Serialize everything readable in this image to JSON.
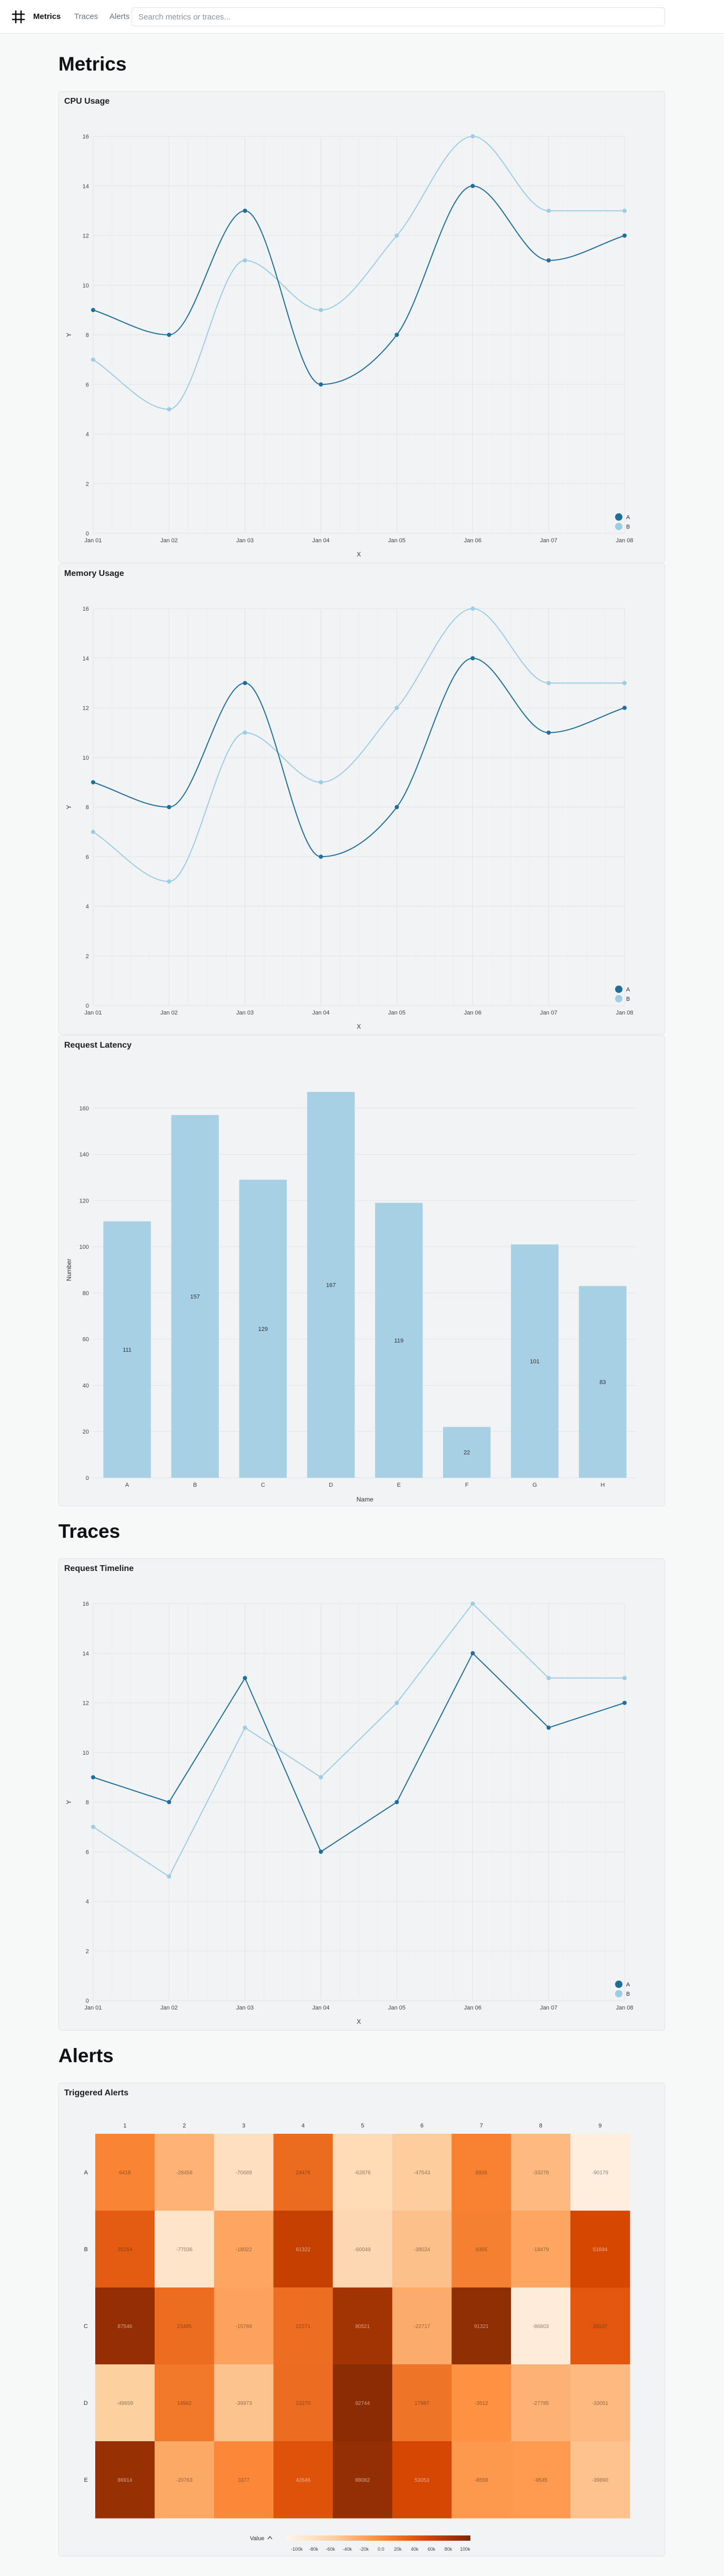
{
  "nav": {
    "brand": "Metrics",
    "links": [
      "Traces",
      "Alerts"
    ],
    "search_placeholder": "Search metrics or traces..."
  },
  "sections": {
    "metrics": "Metrics",
    "traces": "Traces",
    "alerts": "Alerts"
  },
  "colors": {
    "series_a": "#1f6f9c",
    "series_b": "#9ccde4",
    "bar": "#a7d0e4",
    "grid": "#e1e4e7"
  },
  "panels": {
    "cpu": "CPU Usage",
    "memory": "Memory Usage",
    "latency": "Request Latency",
    "timeline": "Request Timeline",
    "alerts": "Triggered Alerts"
  },
  "chart_data": [
    {
      "id": "cpu",
      "type": "line",
      "curve": "smooth",
      "x": [
        "Jan 01",
        "Jan 02",
        "Jan 03",
        "Jan 04",
        "Jan 05",
        "Jan 06",
        "Jan 07",
        "Jan 08"
      ],
      "series": [
        {
          "name": "A",
          "values": [
            9,
            8,
            13,
            6,
            8,
            14,
            11,
            12
          ]
        },
        {
          "name": "B",
          "values": [
            7,
            5,
            11,
            9,
            12,
            16,
            13,
            13
          ]
        }
      ],
      "xlabel": "X",
      "ylabel": "Y",
      "ylim": [
        0,
        16
      ],
      "yticks": [
        0,
        2,
        4,
        6,
        8,
        10,
        12,
        14,
        16
      ],
      "grid": true,
      "legend": "bottom-right"
    },
    {
      "id": "memory",
      "type": "line",
      "curve": "smooth",
      "x": [
        "Jan 01",
        "Jan 02",
        "Jan 03",
        "Jan 04",
        "Jan 05",
        "Jan 06",
        "Jan 07",
        "Jan 08"
      ],
      "series": [
        {
          "name": "A",
          "values": [
            9,
            8,
            13,
            6,
            8,
            14,
            11,
            12
          ]
        },
        {
          "name": "B",
          "values": [
            7,
            5,
            11,
            9,
            12,
            16,
            13,
            13
          ]
        }
      ],
      "xlabel": "X",
      "ylabel": "Y",
      "ylim": [
        0,
        16
      ],
      "yticks": [
        0,
        2,
        4,
        6,
        8,
        10,
        12,
        14,
        16
      ],
      "grid": true,
      "legend": "bottom-right"
    },
    {
      "id": "latency",
      "type": "bar",
      "categories": [
        "A",
        "B",
        "C",
        "D",
        "E",
        "F",
        "G",
        "H"
      ],
      "values": [
        111,
        157,
        129,
        167,
        119,
        22,
        101,
        83
      ],
      "xlabel": "Name",
      "ylabel": "Number",
      "ylim": [
        0,
        180
      ],
      "yticks": [
        0,
        20,
        40,
        60,
        80,
        100,
        120,
        140,
        160
      ],
      "grid": true
    },
    {
      "id": "timeline",
      "type": "line",
      "curve": "linear",
      "x": [
        "Jan 01",
        "Jan 02",
        "Jan 03",
        "Jan 04",
        "Jan 05",
        "Jan 06",
        "Jan 07",
        "Jan 08"
      ],
      "series": [
        {
          "name": "A",
          "values": [
            9,
            8,
            13,
            6,
            8,
            14,
            11,
            12
          ]
        },
        {
          "name": "B",
          "values": [
            7,
            5,
            11,
            9,
            12,
            16,
            13,
            13
          ]
        }
      ],
      "xlabel": "X",
      "ylabel": "Y",
      "ylim": [
        0,
        16
      ],
      "yticks": [
        0,
        2,
        4,
        6,
        8,
        10,
        12,
        14,
        16
      ],
      "grid": true,
      "legend": "bottom-right"
    },
    {
      "id": "alerts",
      "type": "heatmap",
      "columns": [
        "1",
        "2",
        "3",
        "4",
        "5",
        "6",
        "7",
        "8",
        "9"
      ],
      "rows": [
        "A",
        "B",
        "C",
        "D",
        "E"
      ],
      "values": [
        [
          6418,
          -28458,
          -70689,
          24476,
          -62876,
          -47543,
          8926,
          -33278,
          -90179
        ],
        [
          35254,
          -77036,
          -18022,
          61322,
          -60049,
          -38024,
          9365,
          -18479,
          51694
        ],
        [
          87546,
          23485,
          -15789,
          22271,
          80521,
          -22717,
          91321,
          -86803,
          39107
        ],
        [
          -49659,
          14962,
          -39973,
          23270,
          92744,
          17987,
          -3512,
          -27785,
          -33051
        ],
        [
          86914,
          -20763,
          3377,
          42646,
          88082,
          53053,
          -8558,
          -9545,
          -39890
        ]
      ],
      "colorbar": {
        "label": "Value",
        "ticks": [
          "-100k",
          "-80k",
          "-60k",
          "-40k",
          "-20k",
          "0.0",
          "20k",
          "40k",
          "60k",
          "80k",
          "100k"
        ],
        "range": [
          -100000,
          100000
        ]
      }
    }
  ]
}
